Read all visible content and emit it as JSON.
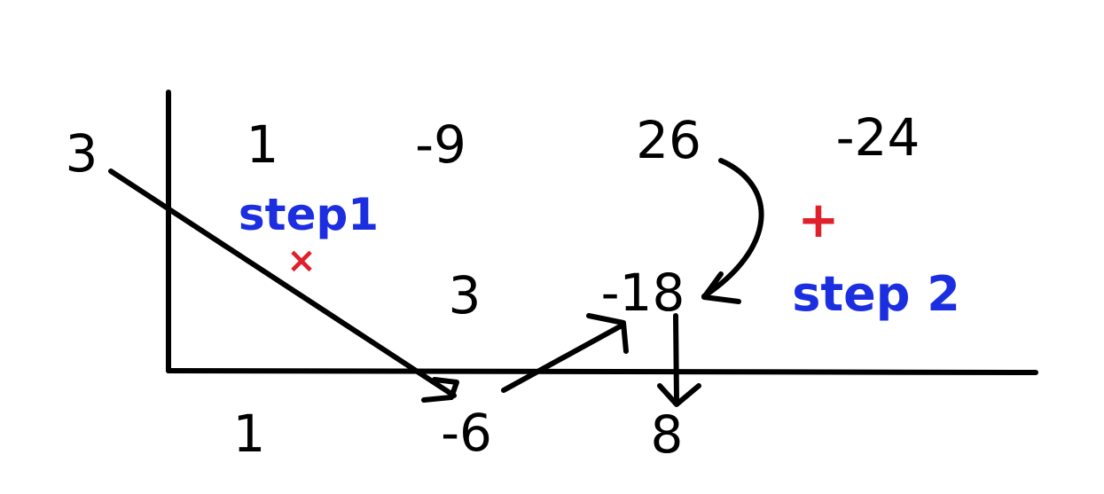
{
  "divisor": "3",
  "coefficients": [
    "1",
    "-9",
    "26",
    "-24"
  ],
  "products": [
    "3",
    "-18"
  ],
  "results": [
    "1",
    "-6",
    "8"
  ],
  "steps": {
    "step1": {
      "label": "step1",
      "operator": "×"
    },
    "step2": {
      "label": "step 2",
      "operator": "+"
    }
  },
  "colors": {
    "ink": "#000000",
    "label": "#1b2fe0",
    "operator": "#e0202a"
  }
}
